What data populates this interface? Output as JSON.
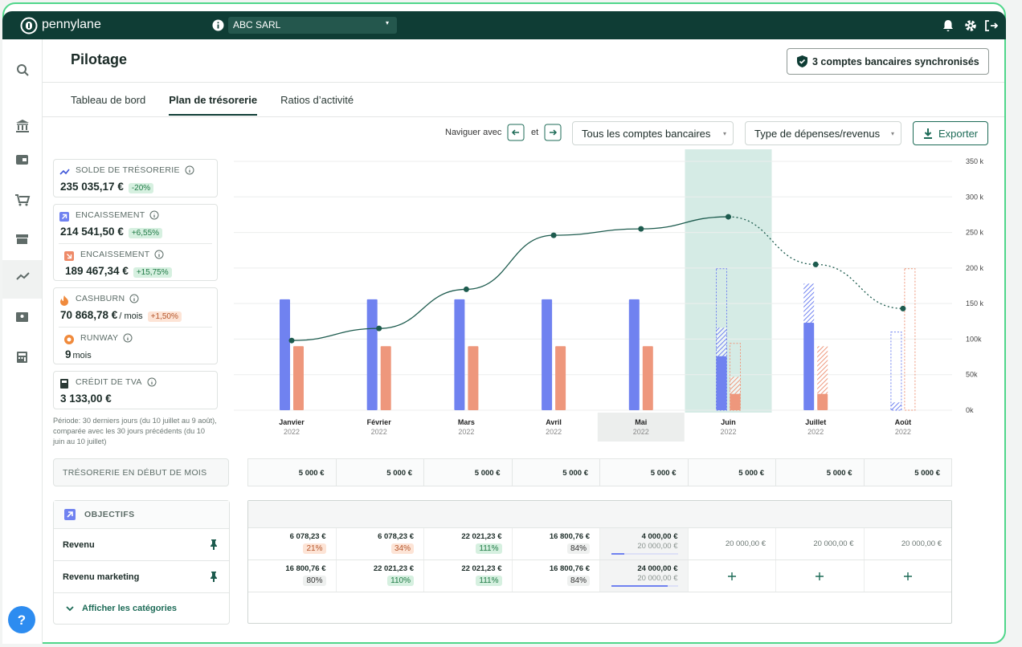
{
  "header": {
    "logo": "pennylane",
    "company": "ABC SARL"
  },
  "page": {
    "title": "Pilotage",
    "sync": "3 comptes bancaires synchronisés",
    "tabs": [
      "Tableau de bord",
      "Plan de trésorerie",
      "Ratios d’activité"
    ]
  },
  "toolbar": {
    "navigate": "Naviguer avec",
    "and": "et",
    "accounts": "Tous les comptes bancaires",
    "types": "Type de dépenses/revenus",
    "export": "Exporter"
  },
  "kpis": [
    {
      "label": "SOLDE DE TRÉSORERIE",
      "value": "235 035,17 €",
      "delta": "-20%",
      "tone": "green"
    },
    {
      "label": "ENCAISSEMENT",
      "value": "214 541,50 €",
      "delta": "+6,55%",
      "tone": "green"
    },
    {
      "label": "ENCAISSEMENT",
      "value": "189 467,34 €",
      "delta": "+15,75%",
      "tone": "green"
    },
    {
      "label": "CASHBURN",
      "value": "70 868,78 €",
      "unit": "/ mois",
      "delta": "+1,50%",
      "tone": "orange"
    },
    {
      "label": "RUNWAY",
      "value": "9",
      "unit": "mois"
    },
    {
      "label": "CRÉDIT DE TVA",
      "value": "3 133,00 €"
    }
  ],
  "period_note": "Période: 30 derniers jours (du 10 juillet au 9 août), comparée avec les 30 jours précédents (du 10 juin au 10 juillet)",
  "chart_data": {
    "type": "bar",
    "categories": [
      "Janvier",
      "Février",
      "Mars",
      "Avril",
      "Mai",
      "Juin",
      "Juillet",
      "Août"
    ],
    "years": [
      "2022",
      "2022",
      "2022",
      "2022",
      "2022",
      "2022",
      "2022",
      "2022"
    ],
    "shaded": [
      false,
      false,
      false,
      false,
      false,
      true,
      false,
      false
    ],
    "highlighted": [
      false,
      false,
      false,
      false,
      true,
      false,
      false,
      false
    ],
    "ylim": [
      0,
      350
    ],
    "yticks": [
      {
        "value": 0,
        "label": "0k"
      },
      {
        "value": 50,
        "label": "50k"
      },
      {
        "value": 100,
        "label": "100k"
      },
      {
        "value": 150,
        "label": "150 k"
      },
      {
        "value": 200,
        "label": "200 k"
      },
      {
        "value": 250,
        "label": "250 k"
      },
      {
        "value": 300,
        "label": "300 k"
      },
      {
        "value": 350,
        "label": "350 k"
      }
    ],
    "grid": true,
    "series": [
      {
        "color": "#7082f0",
        "style": "solid",
        "side": "left",
        "values": [
          156,
          156,
          156,
          156,
          156,
          76,
          123,
          null
        ]
      },
      {
        "color": "#7082f0",
        "style": "hatched",
        "side": "left",
        "stack": 0,
        "values": [
          null,
          null,
          null,
          null,
          null,
          40,
          55,
          11
        ]
      },
      {
        "color": "#7082f0",
        "style": "outline",
        "side": "left",
        "values": [
          null,
          null,
          null,
          null,
          null,
          199,
          null,
          110
        ]
      },
      {
        "color": "#ee977c",
        "style": "solid",
        "side": "right",
        "values": [
          90,
          90,
          90,
          90,
          90,
          23,
          23,
          null
        ]
      },
      {
        "color": "#ee977c",
        "style": "hatched",
        "side": "right",
        "stack": 3,
        "values": [
          null,
          null,
          null,
          null,
          null,
          24,
          67,
          null
        ]
      },
      {
        "color": "#ee977c",
        "style": "outline",
        "side": "right",
        "values": [
          null,
          null,
          null,
          null,
          null,
          94,
          null,
          199
        ]
      },
      {
        "type": "line",
        "color": "#1d5b4e",
        "values": [
          98,
          115,
          170,
          246,
          255,
          272,
          205,
          143
        ],
        "dash": [
          false,
          false,
          false,
          false,
          false,
          false,
          true,
          true
        ]
      }
    ]
  },
  "treasury_table": {
    "label": "TRÉSORERIE EN DÉBUT DE MOIS",
    "values": [
      "5 000 €",
      "5 000 €",
      "5 000 €",
      "5 000 €",
      "5 000 €",
      "5 000 €",
      "5 000 €",
      "5 000 €"
    ]
  },
  "objectives": {
    "title": "OBJECTIFS",
    "toggle": "Afficher les catégories",
    "rows": [
      {
        "label": "Revenu",
        "cells": [
          {
            "value": "6 078,23 €",
            "badge": "21%",
            "tone": "orange"
          },
          {
            "value": "6 078,23 €",
            "badge": "34%",
            "tone": "orange"
          },
          {
            "value": "22 021,23 €",
            "badge": "111%",
            "tone": "green"
          },
          {
            "value": "16 800,76 €",
            "badge": "84%",
            "tone": "gray"
          },
          {
            "value": "4 000,00 €",
            "target": "20 000,00 €"
          },
          {
            "target": "20 000,00 €"
          },
          {
            "target": "20 000,00 €"
          },
          {
            "target": "20 000,00 €"
          }
        ]
      },
      {
        "label": "Revenu marketing",
        "cells": [
          {
            "value": "16 800,76 €",
            "badge": "80%",
            "tone": "gray"
          },
          {
            "value": "22 021,23 €",
            "badge": "110%",
            "tone": "green"
          },
          {
            "value": "22 021,23 €",
            "badge": "111%",
            "tone": "green"
          },
          {
            "value": "16 800,76 €",
            "badge": "84%",
            "tone": "gray"
          },
          {
            "value": "24 000,00 €",
            "target": "20 000,00 €"
          },
          null,
          null,
          null
        ]
      }
    ]
  }
}
